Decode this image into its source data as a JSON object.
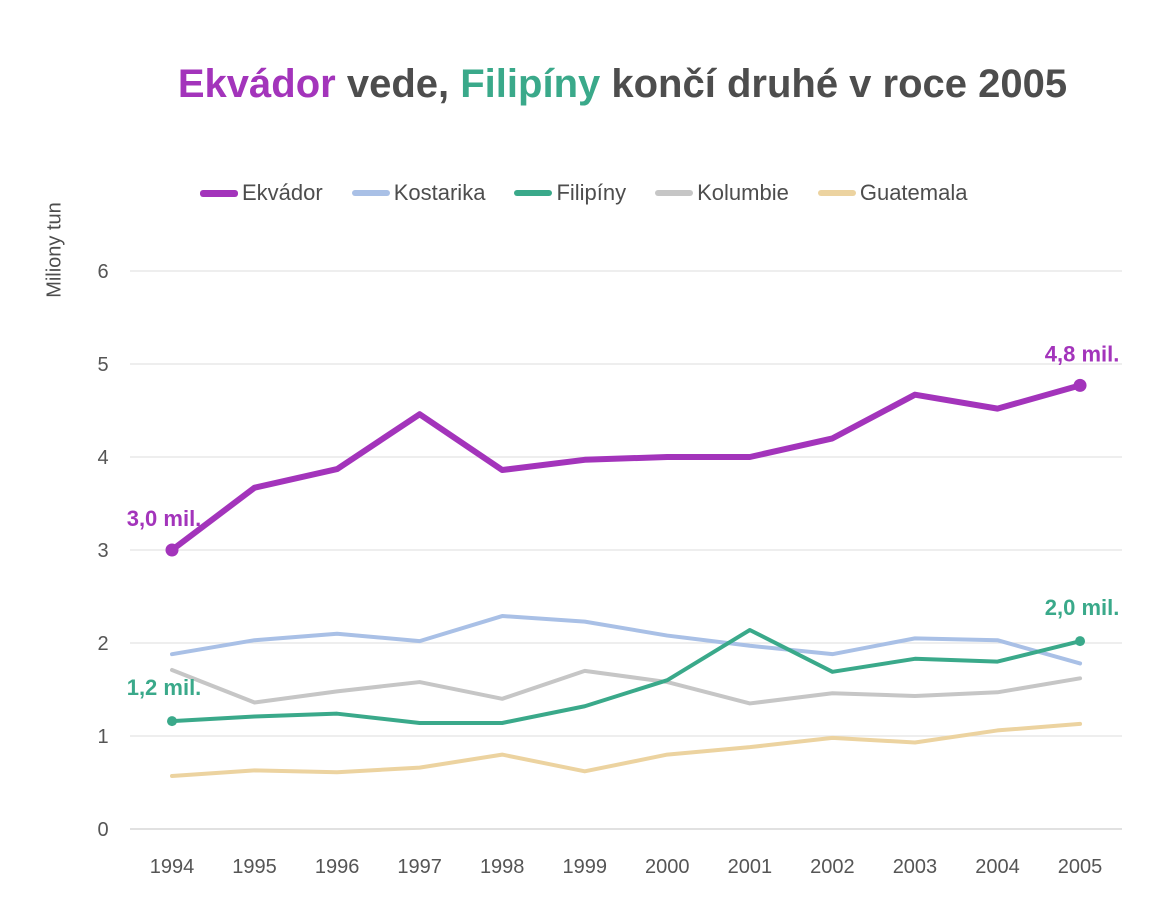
{
  "title": {
    "part1": "Ekvádor",
    "part2": " vede, ",
    "part3": "Filipíny",
    "part4": " končí druhé v roce 2005"
  },
  "chart_data": {
    "type": "line",
    "ylabel": "Miliony tun",
    "xlabel": "",
    "ylim": [
      0,
      6
    ],
    "yticks": [
      "0",
      "1",
      "2",
      "3",
      "4",
      "5",
      "6"
    ],
    "grid": true,
    "legend_position": "top",
    "categories": [
      "1994",
      "1995",
      "1996",
      "1997",
      "1998",
      "1999",
      "2000",
      "2001",
      "2002",
      "2003",
      "2004",
      "2005"
    ],
    "series": [
      {
        "name": "Ekvádor",
        "color": "#a334bb",
        "values": [
          3.0,
          3.67,
          3.87,
          4.46,
          3.86,
          3.97,
          4.0,
          4.0,
          4.2,
          4.67,
          4.52,
          4.77
        ]
      },
      {
        "name": "Kostarika",
        "color": "#a9c0e6",
        "values": [
          1.88,
          2.03,
          2.1,
          2.02,
          2.29,
          2.23,
          2.08,
          1.97,
          1.88,
          2.05,
          2.03,
          1.78
        ]
      },
      {
        "name": "Filipíny",
        "color": "#3aa98a",
        "values": [
          1.16,
          1.21,
          1.24,
          1.14,
          1.14,
          1.32,
          1.6,
          2.14,
          1.69,
          1.83,
          1.8,
          2.02
        ]
      },
      {
        "name": "Kolumbie",
        "color": "#c6c6c6",
        "values": [
          1.71,
          1.36,
          1.48,
          1.58,
          1.4,
          1.7,
          1.58,
          1.35,
          1.46,
          1.43,
          1.47,
          1.62
        ]
      },
      {
        "name": "Guatemala",
        "color": "#ecd3a0",
        "values": [
          0.57,
          0.63,
          0.61,
          0.66,
          0.8,
          0.62,
          0.8,
          0.88,
          0.98,
          0.93,
          1.06,
          1.13
        ]
      }
    ],
    "annotations": [
      {
        "text": "3,0 mil.",
        "series": "Ekvádor",
        "x": "1994",
        "y": 3.0
      },
      {
        "text": "4,8 mil.",
        "series": "Ekvádor",
        "x": "2005",
        "y": 4.77
      },
      {
        "text": "1,2 mil.",
        "series": "Filipíny",
        "x": "1994",
        "y": 1.16
      },
      {
        "text": "2,0 mil.",
        "series": "Filipíny",
        "x": "2005",
        "y": 2.02
      }
    ]
  }
}
